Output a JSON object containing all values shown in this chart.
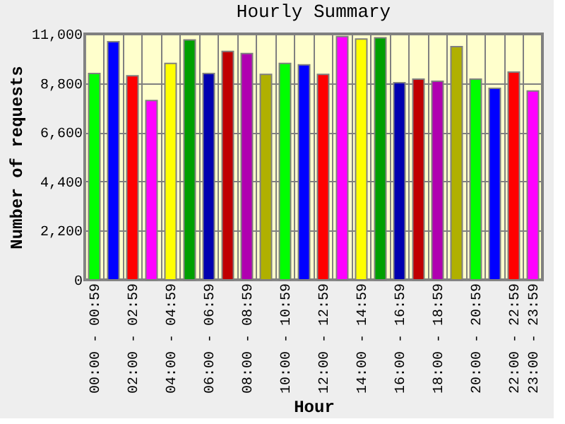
{
  "chart_data": {
    "type": "bar",
    "title": "Hourly Summary",
    "xlabel": "Hour",
    "ylabel": "Number of requests",
    "categories": [
      "00:00 - 00:59",
      null,
      "02:00 - 02:59",
      null,
      "04:00 - 04:59",
      null,
      "06:00 - 06:59",
      null,
      "08:00 - 08:59",
      null,
      "10:00 - 10:59",
      null,
      "12:00 - 12:59",
      null,
      "14:00 - 14:59",
      null,
      "16:00 - 16:59",
      null,
      "18:00 - 18:59",
      null,
      "20:00 - 20:59",
      null,
      "22:00 - 22:59",
      "23:00 - 23:59"
    ],
    "values": [
      9230,
      10650,
      9130,
      8020,
      9680,
      10730,
      9230,
      10220,
      10120,
      9190,
      9680,
      9620,
      9190,
      10880,
      10770,
      10830,
      8820,
      8980,
      8880,
      10430,
      8980,
      8570,
      9290,
      8450
    ],
    "colors": [
      "#00ff00",
      "#0000ff",
      "#ff0000",
      "#ff00ff",
      "#ffff00",
      "#00a000",
      "#0000b0",
      "#c00000",
      "#b000b0",
      "#b0b000",
      "#00ff00",
      "#0000ff",
      "#ff0000",
      "#ff00ff",
      "#ffff00",
      "#00a000",
      "#0000b0",
      "#c00000",
      "#b000b0",
      "#b0b000",
      "#00ff00",
      "#0000ff",
      "#ff0000",
      "#ff00ff"
    ],
    "ylim": [
      0,
      11000
    ],
    "yticks": [
      0,
      {
        "value": 2200,
        "label": "2,200"
      },
      {
        "value": 4400,
        "label": "4,400"
      },
      {
        "value": 6600,
        "label": "6,600"
      },
      {
        "value": 8800,
        "label": "8,800"
      },
      {
        "value": 11000,
        "label": "11,000"
      }
    ],
    "grid": true
  }
}
